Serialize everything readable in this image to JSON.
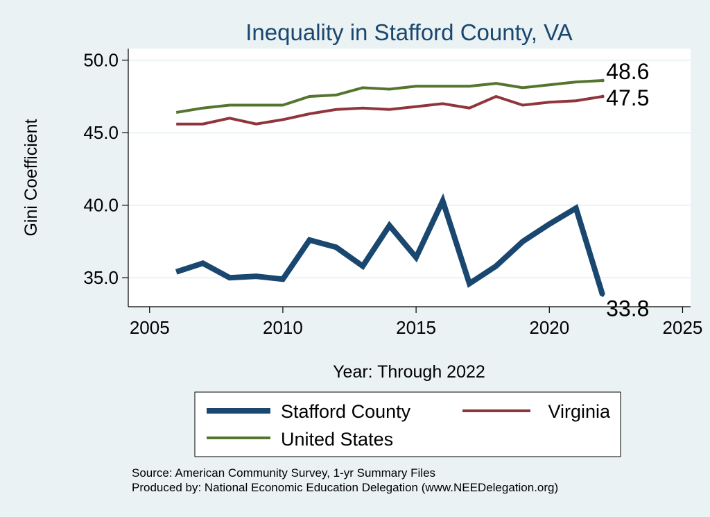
{
  "chart_data": {
    "type": "line",
    "title": "Inequality in Stafford County, VA",
    "xlabel": "Year: Through 2022",
    "ylabel": "Gini Coefficient",
    "xlim": [
      2004.2,
      2025.3
    ],
    "ylim": [
      33.0,
      50.8
    ],
    "x_ticks": [
      2005,
      2010,
      2015,
      2020,
      2025
    ],
    "y_ticks": [
      35.0,
      40.0,
      45.0,
      50.0
    ],
    "x_tick_labels": [
      "2005",
      "2010",
      "2015",
      "2020",
      "2025"
    ],
    "y_tick_labels": [
      "35.0",
      "40.0",
      "45.0",
      "50.0"
    ],
    "grid": true,
    "x": [
      2006,
      2007,
      2008,
      2009,
      2010,
      2011,
      2012,
      2013,
      2014,
      2015,
      2016,
      2017,
      2018,
      2019,
      2020,
      2021,
      2022
    ],
    "series": [
      {
        "name": "Stafford County",
        "color": "#1a476f",
        "values": [
          35.4,
          36.0,
          35.0,
          35.1,
          34.9,
          37.6,
          37.1,
          35.8,
          38.6,
          36.4,
          40.3,
          34.6,
          35.8,
          37.5,
          38.7,
          39.8,
          33.8
        ],
        "end_label": "33.8"
      },
      {
        "name": "Virginia",
        "color": "#90353b",
        "values": [
          45.6,
          45.6,
          46.0,
          45.6,
          45.9,
          46.3,
          46.6,
          46.7,
          46.6,
          46.8,
          47.0,
          46.7,
          47.5,
          46.9,
          47.1,
          47.2,
          47.5
        ],
        "end_label": "47.5"
      },
      {
        "name": "United States",
        "color": "#55752f",
        "values": [
          46.4,
          46.7,
          46.9,
          46.9,
          46.9,
          47.5,
          47.6,
          48.1,
          48.0,
          48.2,
          48.2,
          48.2,
          48.4,
          48.1,
          48.3,
          48.5,
          48.6
        ],
        "end_label": "48.6"
      }
    ],
    "legend": {
      "position": "bottom",
      "entries": [
        "Stafford County",
        "Virginia",
        "United States"
      ]
    },
    "notes": [
      "Source: American Community Survey, 1-yr Summary Files",
      "Produced by: National Economic Education Delegation (www.NEEDelegation.org)"
    ]
  },
  "colors": {
    "background": "#eaf2f3",
    "plot_background": "#ffffff",
    "grid": "#eaf2f3",
    "title": "#1a476f",
    "text": "#000000"
  }
}
